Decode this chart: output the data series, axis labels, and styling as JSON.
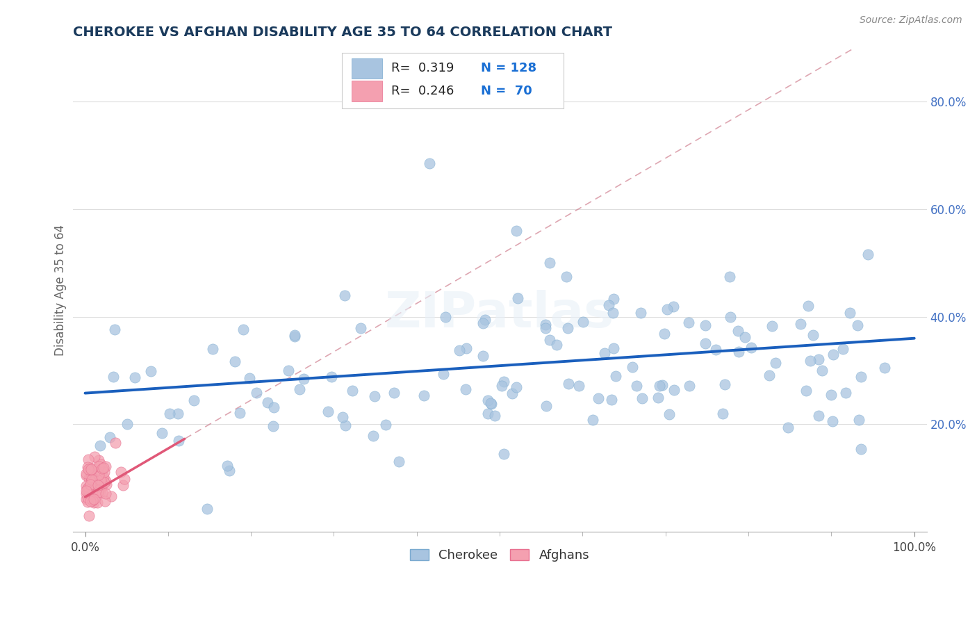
{
  "title": "CHEROKEE VS AFGHAN DISABILITY AGE 35 TO 64 CORRELATION CHART",
  "source_text": "Source: ZipAtlas.com",
  "ylabel": "Disability Age 35 to 64",
  "cherokee_color": "#a8c4e0",
  "afghan_color": "#f4a0b0",
  "cherokee_line_color": "#1a5fbd",
  "afghan_line_color": "#e05878",
  "dashed_line_color": "#c0a0a8",
  "background_color": "#ffffff",
  "title_color": "#1a3a5c",
  "title_fontsize": 14,
  "legend_text_color": "#1a6fd4",
  "seed": 12345
}
